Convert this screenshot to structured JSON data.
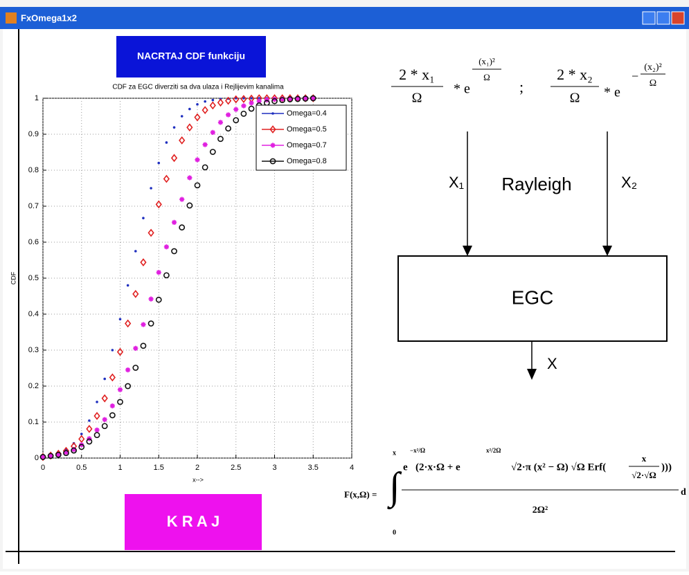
{
  "window": {
    "title": "FxOmega1x2"
  },
  "buttons": {
    "plot": "NACRTAJ CDF funkciju",
    "exit": "K R A J"
  },
  "chart_data": {
    "type": "scatter",
    "title": "CDF za EGC diverziti sa dva ulaza i Rejlijevim kanalima",
    "xlabel": "x-->",
    "ylabel": "CDF",
    "x": [
      0,
      0.1,
      0.2,
      0.3,
      0.4,
      0.5,
      0.6,
      0.7,
      0.8,
      0.9,
      1,
      1.1,
      1.2,
      1.3,
      1.4,
      1.5,
      1.6,
      1.7,
      1.8,
      1.9,
      2,
      2.1,
      2.2,
      2.3,
      2.4,
      2.5,
      2.6,
      2.7,
      2.8,
      2.9,
      3,
      3.1,
      3.2,
      3.3,
      3.4,
      3.5
    ],
    "series": [
      {
        "name": "Omega=0.4",
        "color": "#1f2fbf",
        "marker": "dot",
        "values": [
          0.003,
          0.007,
          0.013,
          0.024,
          0.041,
          0.067,
          0.104,
          0.156,
          0.22,
          0.3,
          0.386,
          0.48,
          0.575,
          0.667,
          0.75,
          0.82,
          0.877,
          0.919,
          0.95,
          0.97,
          0.983,
          0.991,
          0.995,
          0.998,
          0.999,
          1,
          1,
          1,
          1,
          1,
          1,
          1,
          1,
          1,
          1,
          1
        ]
      },
      {
        "name": "Omega=0.5",
        "color": "#e02020",
        "marker": "diamond",
        "values": [
          0.003,
          0.007,
          0.012,
          0.02,
          0.033,
          0.053,
          0.081,
          0.117,
          0.166,
          0.224,
          0.295,
          0.374,
          0.456,
          0.544,
          0.626,
          0.705,
          0.776,
          0.834,
          0.883,
          0.919,
          0.947,
          0.967,
          0.98,
          0.988,
          0.993,
          0.997,
          0.998,
          0.999,
          1,
          1,
          1,
          1,
          1,
          1,
          1,
          1
        ]
      },
      {
        "name": "Omega=0.7",
        "color": "#e020e0",
        "marker": "star",
        "values": [
          0.003,
          0.006,
          0.01,
          0.016,
          0.024,
          0.037,
          0.054,
          0.078,
          0.107,
          0.145,
          0.19,
          0.245,
          0.305,
          0.371,
          0.442,
          0.516,
          0.587,
          0.655,
          0.719,
          0.779,
          0.829,
          0.871,
          0.905,
          0.933,
          0.954,
          0.969,
          0.979,
          0.987,
          0.992,
          0.995,
          0.997,
          0.998,
          0.999,
          1,
          1,
          1
        ]
      },
      {
        "name": "Omega=0.8",
        "color": "#111111",
        "marker": "circle",
        "values": [
          0.003,
          0.006,
          0.009,
          0.014,
          0.021,
          0.031,
          0.046,
          0.064,
          0.089,
          0.119,
          0.156,
          0.2,
          0.251,
          0.312,
          0.374,
          0.44,
          0.508,
          0.575,
          0.641,
          0.702,
          0.758,
          0.808,
          0.851,
          0.887,
          0.916,
          0.939,
          0.957,
          0.971,
          0.98,
          0.987,
          0.992,
          0.995,
          0.997,
          0.998,
          0.999,
          1
        ]
      }
    ],
    "xlim": [
      0,
      4
    ],
    "ylim": [
      0,
      1
    ],
    "xticks": [
      0,
      0.5,
      1,
      1.5,
      2,
      2.5,
      3,
      3.5,
      4
    ],
    "yticks": [
      0,
      0.1,
      0.2,
      0.3,
      0.4,
      0.5,
      0.6,
      0.7,
      0.8,
      0.9,
      1
    ],
    "grid": true,
    "legend": "upper right"
  },
  "diagram": {
    "input1": "X₁",
    "channel": "Rayleigh",
    "input2": "X₂",
    "combiner": "EGC",
    "output": "X"
  },
  "formula_top": {
    "num1": "2 * x₁",
    "den1": "Ω",
    "e1": "* e",
    "exp_num1": "(x₁)²",
    "exp_den1": "Ω",
    "separator": ";",
    "num2": "2 * x₂",
    "den2": "Ω",
    "e2": "* e",
    "minus2": "−",
    "exp_num2": "(x₂)²",
    "exp_den2": "Ω"
  },
  "formula_bottom": {
    "lhs": "F(x,Ω) =",
    "integral": "∫",
    "upper": "x",
    "lower": "0",
    "e": "e",
    "e_exp": "−x²/Ω",
    "main": "(2·x·Ω + e",
    "inner_exp": "x²/2Ω",
    "rest": "√2·π (x² − Ω) √Ω Erf(",
    "erf_num": "x",
    "erf_den": "√2·√Ω",
    "close": ")))",
    "denominator": "2Ω²",
    "tail": "d"
  }
}
